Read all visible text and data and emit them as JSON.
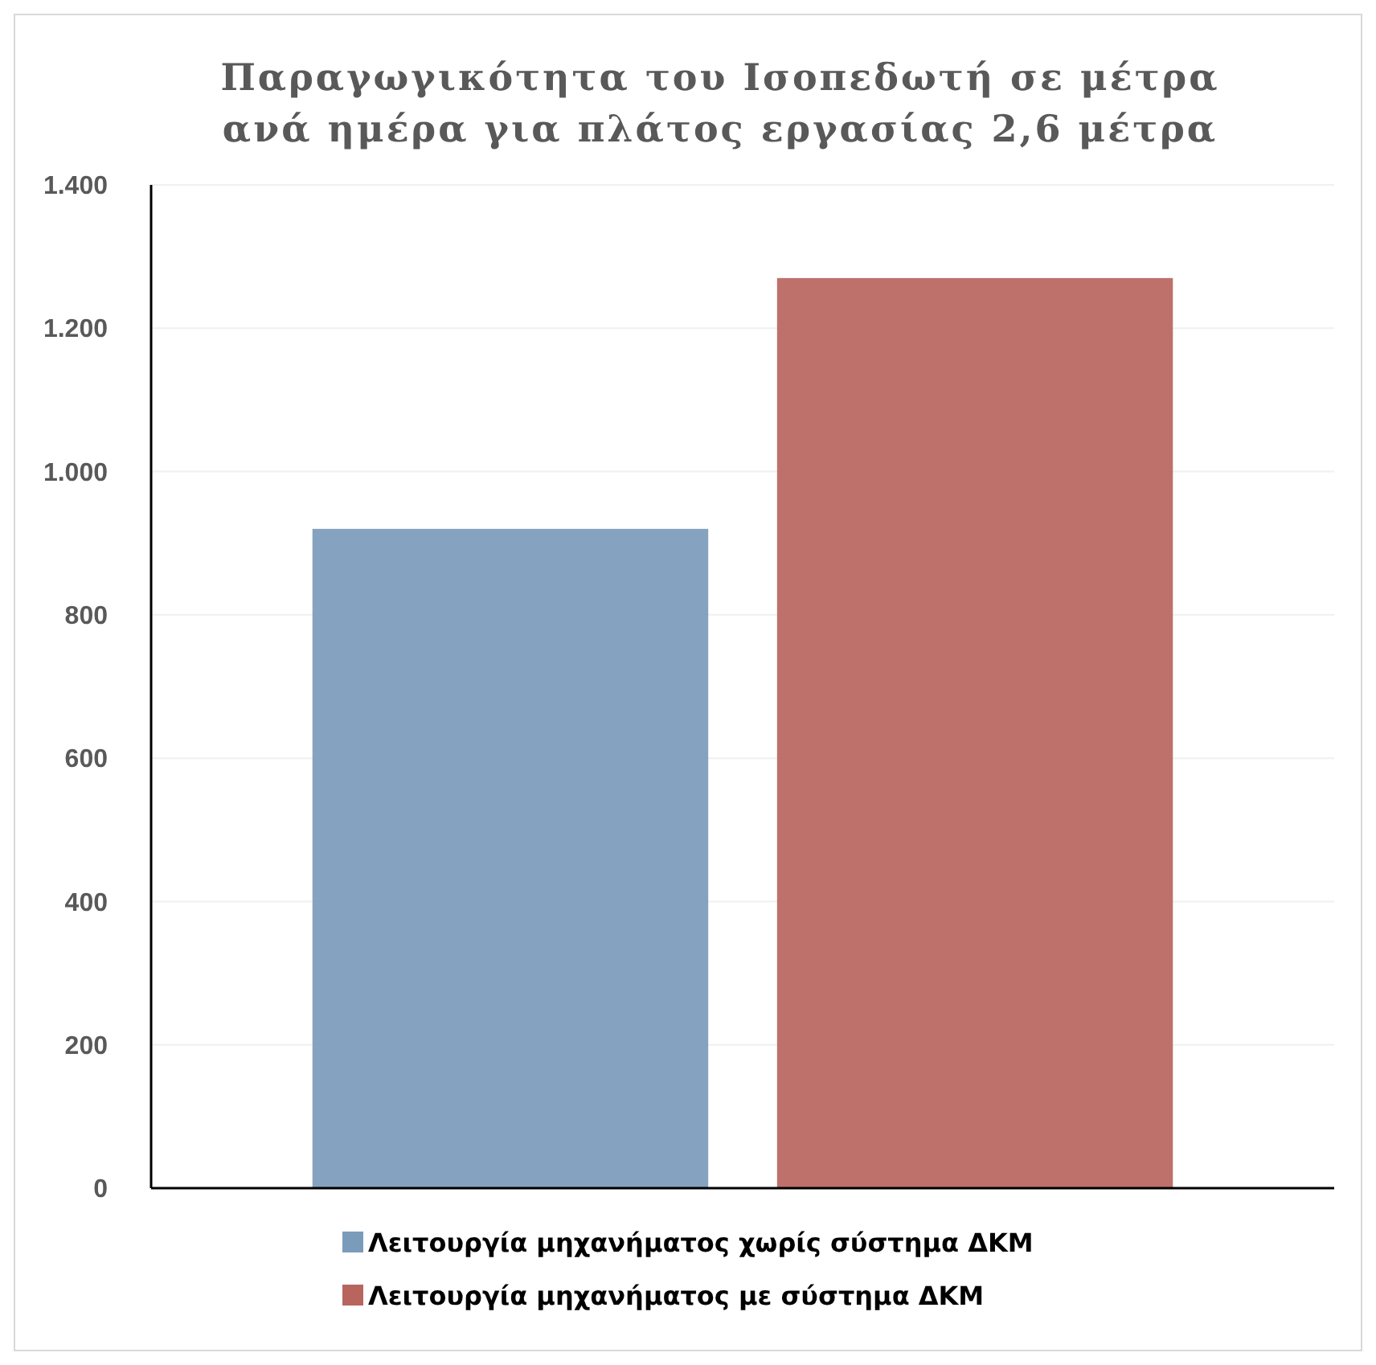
{
  "chart_data": {
    "type": "bar",
    "title": "Παραγωγικότητα του Ισοπεδωτή σε μέτρα\nανά ημέρα για πλάτος εργασίας 2,6 μέτρα",
    "categories": [
      null
    ],
    "series": [
      {
        "name": "Λειτουργία μηχανήματος χωρίς σύστημα ΔΚΜ",
        "color": "#7b9bbb",
        "values": [
          920
        ]
      },
      {
        "name": "Λειτουργία μηχανήματος με σύστημα ΔΚΜ",
        "color": "#b8655e",
        "values": [
          1270
        ]
      }
    ],
    "ylim": [
      0,
      1400
    ],
    "yticks": [
      0,
      200,
      400,
      600,
      800,
      {
        "value": 1000,
        "label": "1.000"
      },
      {
        "value": 1200,
        "label": "1.200"
      },
      {
        "value": 1400,
        "label": "1.400"
      }
    ],
    "grid": "y",
    "legend": "bottom"
  }
}
